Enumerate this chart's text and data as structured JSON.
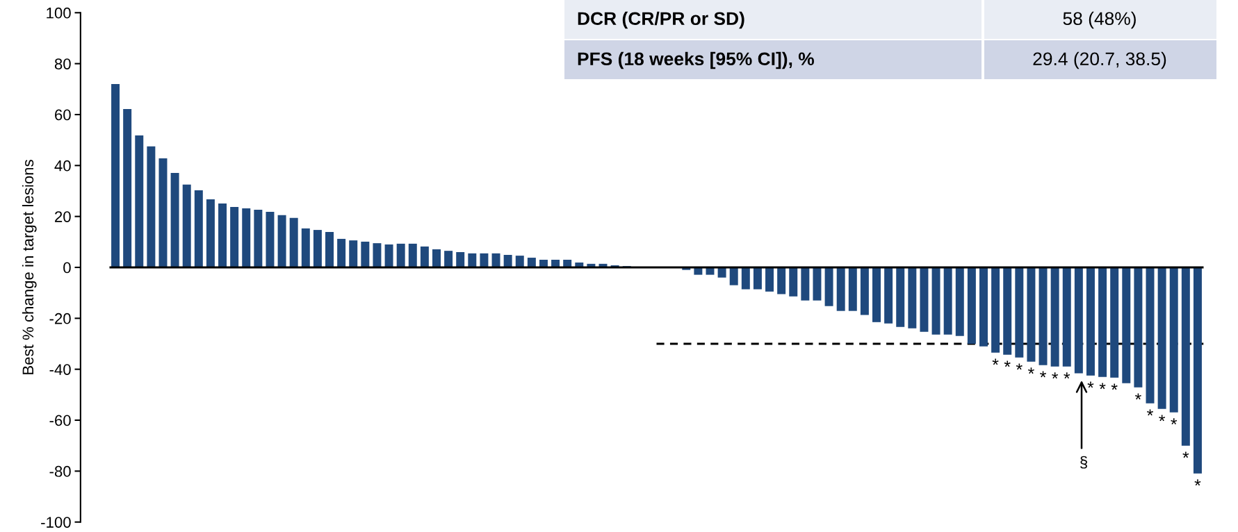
{
  "chart_data": {
    "type": "bar",
    "ylabel": "Best % change in target lesions",
    "color": "#1f497d",
    "categories": [
      null,
      null,
      null,
      null,
      null,
      null,
      null,
      null,
      null,
      null,
      null,
      null,
      null,
      null,
      null,
      null,
      null,
      null,
      null,
      null,
      null,
      null,
      null,
      null,
      null,
      null,
      null,
      null,
      null,
      null,
      null,
      null,
      null,
      null,
      null,
      null,
      null,
      null,
      null,
      null,
      null,
      null,
      null,
      null,
      null,
      null,
      null,
      null,
      null,
      null,
      null,
      null,
      null,
      null,
      null,
      null,
      null,
      null,
      null,
      null,
      null,
      null,
      null,
      null,
      null,
      null,
      null,
      null,
      null,
      null,
      null,
      null,
      null,
      null,
      null,
      null,
      null,
      null,
      null,
      null,
      null,
      null,
      null,
      null,
      null,
      null,
      null,
      null,
      null,
      null,
      null,
      null
    ],
    "values": [
      72.0,
      62.2,
      51.8,
      47.5,
      42.8,
      37.1,
      32.5,
      30.3,
      26.7,
      25.1,
      23.7,
      23.2,
      22.6,
      21.8,
      20.5,
      19.4,
      15.3,
      14.7,
      13.9,
      11.2,
      10.6,
      10.1,
      9.5,
      9.0,
      9.3,
      9.3,
      8.2,
      7.1,
      6.5,
      6.0,
      5.5,
      5.5,
      5.5,
      4.9,
      4.6,
      3.8,
      3.0,
      3.0,
      3.0,
      1.9,
      1.4,
      1.4,
      0.8,
      0.5,
      0,
      0,
      0,
      0,
      -1.0,
      -2.9,
      -2.9,
      -4.0,
      -7.0,
      -8.6,
      -8.6,
      -9.5,
      -10.5,
      -11.4,
      -13.0,
      -13.0,
      -15.2,
      -17.1,
      -17.1,
      -18.7,
      -21.5,
      -22.0,
      -23.4,
      -23.9,
      -25.3,
      -26.4,
      -26.4,
      -26.9,
      -30.0,
      -31.0,
      -33.5,
      -34.3,
      -35.4,
      -37.0,
      -38.4,
      -38.9,
      -38.9,
      -41.6,
      -42.5,
      -43.0,
      -43.3,
      -45.5,
      -47.1,
      -53.4,
      -55.6,
      -56.9,
      -70.0,
      -80.9
    ],
    "value_labels": [
      null,
      null,
      null,
      null,
      null,
      null,
      null,
      null,
      null,
      null,
      null,
      null,
      null,
      null,
      null,
      null,
      null,
      null,
      null,
      null,
      null,
      null,
      null,
      null,
      null,
      null,
      null,
      null,
      null,
      null,
      null,
      null,
      null,
      null,
      null,
      null,
      null,
      null,
      null,
      null,
      null,
      null,
      null,
      null,
      null,
      null,
      null,
      null,
      null,
      null,
      null,
      null,
      null,
      null,
      null,
      null,
      null,
      null,
      null,
      null,
      null,
      null,
      null,
      null,
      null,
      null,
      null,
      null,
      null,
      null,
      null,
      null,
      null,
      null,
      "*",
      "*",
      "*",
      "*",
      "*",
      "*",
      "*",
      null,
      "*",
      "*",
      "*",
      null,
      "*",
      "*",
      "*",
      "*",
      "*",
      "*"
    ],
    "ylim": [
      -100,
      100
    ],
    "yticks": [
      -100,
      -80,
      -60,
      -40,
      -20,
      0,
      20,
      40,
      60,
      80,
      100
    ],
    "ref_lines": [
      {
        "axis": "y",
        "value": 0,
        "line_style": "solid",
        "color": "#000000"
      },
      {
        "axis": "y",
        "value": -30,
        "line_style": "dashed",
        "color": "#000000"
      }
    ],
    "annotations": [
      "§",
      "DCR (CR/PR or SD)",
      "58 (48%)",
      "PFS (18 weeks [95% CI]), %",
      "29.4 (20.7, 38.5)"
    ],
    "grid": false,
    "legend": false
  }
}
